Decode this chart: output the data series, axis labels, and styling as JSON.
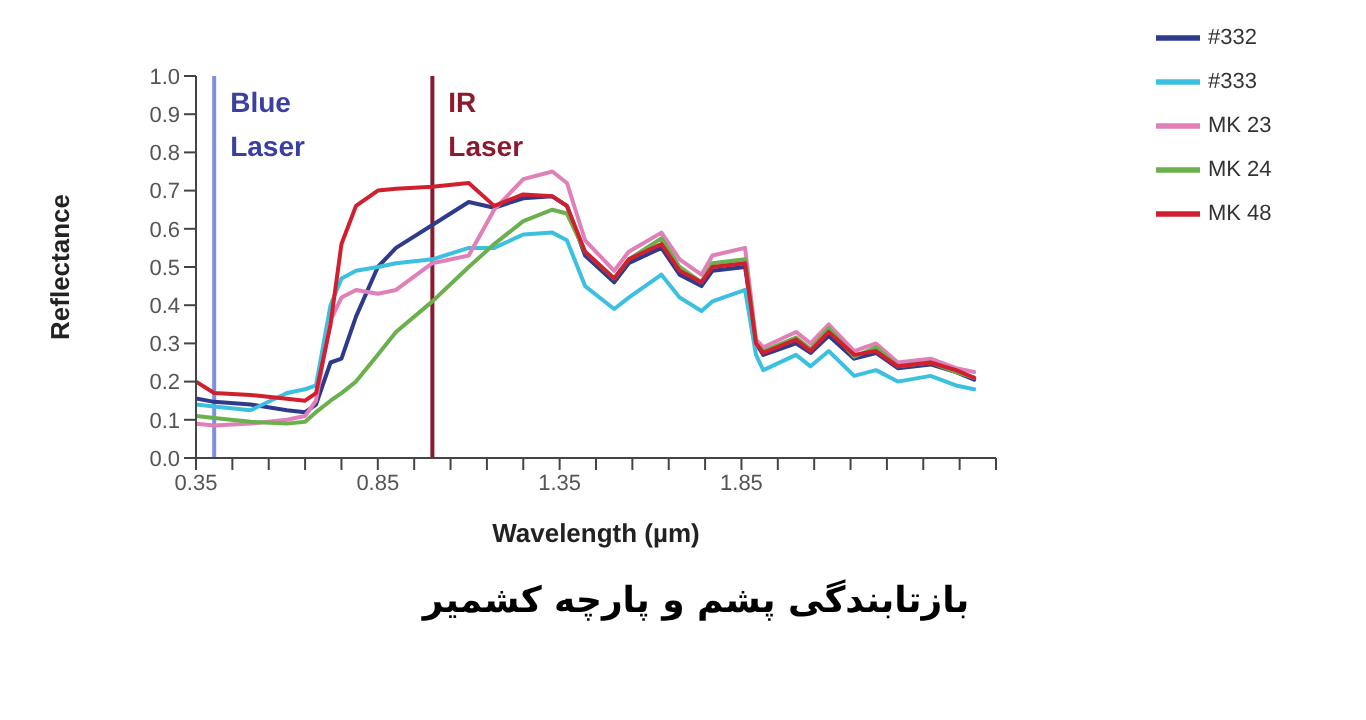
{
  "chart_data": {
    "type": "line",
    "title": "بازتابندگی پشم و پارچه کشمیر",
    "xlabel": "Wavelength (µm)",
    "ylabel": "Reflectance",
    "x": [
      0.35,
      0.4,
      0.5,
      0.6,
      0.65,
      0.68,
      0.72,
      0.75,
      0.79,
      0.85,
      0.9,
      1.0,
      1.1,
      1.17,
      1.25,
      1.33,
      1.37,
      1.42,
      1.5,
      1.54,
      1.63,
      1.68,
      1.74,
      1.77,
      1.86,
      1.89,
      1.91,
      2.0,
      2.04,
      2.09,
      2.16,
      2.22,
      2.28,
      2.37,
      2.44,
      2.49
    ],
    "series": [
      {
        "name": "#332",
        "color": "#2e3a8c",
        "values": [
          0.156,
          0.147,
          0.14,
          0.125,
          0.12,
          0.14,
          0.25,
          0.26,
          0.37,
          0.5,
          0.55,
          0.61,
          0.67,
          0.655,
          0.68,
          0.685,
          0.66,
          0.53,
          0.46,
          0.51,
          0.55,
          0.48,
          0.45,
          0.49,
          0.5,
          0.3,
          0.27,
          0.3,
          0.275,
          0.32,
          0.26,
          0.275,
          0.235,
          0.245,
          0.225,
          0.205
        ]
      },
      {
        "name": "#333",
        "color": "#3cc0e0",
        "values": [
          0.14,
          0.135,
          0.125,
          0.17,
          0.18,
          0.19,
          0.4,
          0.47,
          0.49,
          0.5,
          0.51,
          0.52,
          0.55,
          0.55,
          0.585,
          0.59,
          0.57,
          0.45,
          0.39,
          0.42,
          0.48,
          0.42,
          0.385,
          0.41,
          0.44,
          0.27,
          0.23,
          0.27,
          0.24,
          0.28,
          0.215,
          0.23,
          0.2,
          0.215,
          0.19,
          0.18
        ]
      },
      {
        "name": "MK 23",
        "color": "#e07fb8",
        "values": [
          0.09,
          0.085,
          0.09,
          0.1,
          0.11,
          0.15,
          0.36,
          0.42,
          0.44,
          0.43,
          0.44,
          0.51,
          0.53,
          0.65,
          0.73,
          0.75,
          0.72,
          0.57,
          0.49,
          0.54,
          0.59,
          0.52,
          0.48,
          0.53,
          0.55,
          0.31,
          0.29,
          0.33,
          0.3,
          0.35,
          0.28,
          0.3,
          0.25,
          0.26,
          0.235,
          0.225
        ]
      },
      {
        "name": "MK 24",
        "color": "#6ab04c",
        "values": [
          0.11,
          0.105,
          0.095,
          0.09,
          0.095,
          0.12,
          0.15,
          0.17,
          0.2,
          0.27,
          0.33,
          0.41,
          0.5,
          0.56,
          0.62,
          0.65,
          0.64,
          0.54,
          0.47,
          0.52,
          0.575,
          0.5,
          0.46,
          0.51,
          0.52,
          0.3,
          0.28,
          0.315,
          0.285,
          0.34,
          0.265,
          0.29,
          0.24,
          0.25,
          0.225,
          0.21
        ]
      },
      {
        "name": "MK 48",
        "color": "#d02030",
        "values": [
          0.2,
          0.17,
          0.165,
          0.155,
          0.15,
          0.17,
          0.35,
          0.56,
          0.66,
          0.7,
          0.705,
          0.71,
          0.72,
          0.66,
          0.69,
          0.685,
          0.66,
          0.54,
          0.47,
          0.52,
          0.56,
          0.49,
          0.46,
          0.5,
          0.51,
          0.3,
          0.275,
          0.31,
          0.28,
          0.33,
          0.27,
          0.28,
          0.24,
          0.25,
          0.23,
          0.21
        ]
      }
    ],
    "xlim": [
      0.35,
      2.55
    ],
    "xticks": [
      0.35,
      {
        "value": 0.45,
        "label": null
      },
      {
        "value": 0.55,
        "label": null
      },
      {
        "value": 0.65,
        "label": null
      },
      {
        "value": 0.75,
        "label": null
      },
      0.85,
      {
        "value": 0.95,
        "label": null
      },
      {
        "value": 1.05,
        "label": null
      },
      {
        "value": 1.15,
        "label": null
      },
      {
        "value": 1.25,
        "label": null
      },
      1.35,
      {
        "value": 1.45,
        "label": null
      },
      {
        "value": 1.55,
        "label": null
      },
      {
        "value": 1.65,
        "label": null
      },
      {
        "value": 1.75,
        "label": null
      },
      1.85,
      {
        "value": 1.95,
        "label": null
      },
      {
        "value": 2.05,
        "label": null
      },
      {
        "value": 2.15,
        "label": null
      },
      {
        "value": 2.25,
        "label": null
      },
      {
        "value": 2.35,
        "label": null
      },
      {
        "value": 2.45,
        "label": null
      },
      {
        "value": 2.55,
        "label": null
      }
    ],
    "ylim": [
      0,
      1
    ],
    "yticks": [
      {
        "value": 0,
        "label": "0.0"
      },
      0.1,
      0.2,
      0.3,
      0.4,
      0.5,
      0.6,
      0.7,
      0.8,
      0.9,
      {
        "value": 1,
        "label": "1.0"
      }
    ],
    "ref_lines": [
      {
        "axis": "x",
        "value": 0.4,
        "label": "Blue Laser",
        "color": "#7f8fe0"
      },
      {
        "axis": "x",
        "value": 1.0,
        "label": "IR Laser",
        "color": "#8b1a2e"
      }
    ],
    "grid": false,
    "legend": "top right",
    "marker": "none",
    "line_style": "solid"
  }
}
